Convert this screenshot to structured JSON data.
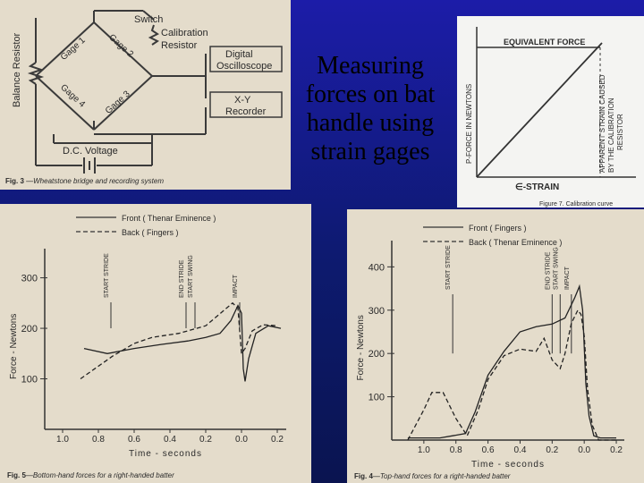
{
  "slide_title": "Measuring forces on bat handle using strain gages",
  "wheatstone": {
    "gages": [
      "Gage 1",
      "Gage 2",
      "Gage 4",
      "Gage 3"
    ],
    "switch": "Switch",
    "cal_resistor": [
      "Calibration",
      "Resistor"
    ],
    "balance": "Balance Resistor",
    "oscilloscope": [
      "Digital",
      "Oscilloscope"
    ],
    "xy": [
      "X-Y",
      "Recorder"
    ],
    "dc": "D.C. Voltage",
    "caption_num": "Fig. 3",
    "caption": "—Wheatstone bridge and recording system"
  },
  "calibration": {
    "label": "EQUIVALENT FORCE",
    "ylabel": "P-FORCE IN NEWTONS",
    "side1": "APPARENT STRAIN CAUSED",
    "side2": "BY THE CALIBRATION",
    "side3": "RESISTOR",
    "xlabel": "∈-STRAIN",
    "caption": "Figure 7. Calibration curve"
  },
  "chart_data": [
    {
      "type": "line",
      "xlabel": "Time - seconds",
      "ylabel": "Force - Newtons",
      "x_ticks": [
        "1.0",
        "0.8",
        "0.6",
        "0.4",
        "0.2",
        "0.0",
        "0.2"
      ],
      "y_ticks": [
        "100",
        "200",
        "300"
      ],
      "legend": [
        "Front ( Thenar Eminence )",
        "Back ( Fingers )"
      ],
      "markers": [
        "START STRIDE",
        "END STRIDE",
        "START SWING",
        "IMPACT"
      ],
      "caption_num": "Fig. 5",
      "caption": "—Bottom-hand forces for a right-handed batter",
      "series": [
        {
          "name": "Front ( Thenar Eminence )",
          "style": "solid",
          "points": [
            [
              -0.88,
              160
            ],
            [
              -0.75,
              150
            ],
            [
              -0.6,
              160
            ],
            [
              -0.45,
              168
            ],
            [
              -0.3,
              175
            ],
            [
              -0.2,
              182
            ],
            [
              -0.12,
              190
            ],
            [
              -0.06,
              215
            ],
            [
              -0.02,
              245
            ],
            [
              0.0,
              230
            ],
            [
              0.01,
              120
            ],
            [
              0.02,
              95
            ],
            [
              0.04,
              140
            ],
            [
              0.08,
              190
            ],
            [
              0.15,
              205
            ],
            [
              0.22,
              200
            ]
          ]
        },
        {
          "name": "Back ( Fingers )",
          "style": "dashed",
          "points": [
            [
              -0.9,
              100
            ],
            [
              -0.82,
              120
            ],
            [
              -0.72,
              145
            ],
            [
              -0.6,
              170
            ],
            [
              -0.5,
              182
            ],
            [
              -0.35,
              190
            ],
            [
              -0.2,
              205
            ],
            [
              -0.1,
              235
            ],
            [
              -0.05,
              250
            ],
            [
              -0.02,
              240
            ],
            [
              0.0,
              150
            ],
            [
              0.02,
              160
            ],
            [
              0.06,
              195
            ],
            [
              0.12,
              207
            ],
            [
              0.2,
              205
            ]
          ]
        }
      ]
    },
    {
      "type": "line",
      "xlabel": "Time - seconds",
      "ylabel": "Force - Newtons",
      "x_ticks": [
        "1.0",
        "0.8",
        "0.6",
        "0.4",
        "0.2",
        "0.0",
        "0.2"
      ],
      "y_ticks": [
        "100",
        "200",
        "300",
        "400"
      ],
      "legend": [
        "Front ( Fingers )",
        "Back ( Thenar Eminence )"
      ],
      "markers": [
        "START STRIDE",
        "END STRIDE",
        "START SWING",
        "IMPACT"
      ],
      "caption_num": "Fig. 4",
      "caption": "—Top-hand forces for a right-handed batter",
      "series": [
        {
          "name": "Front ( Fingers )",
          "style": "solid",
          "points": [
            [
              -1.1,
              5
            ],
            [
              -0.9,
              5
            ],
            [
              -0.82,
              10
            ],
            [
              -0.74,
              15
            ],
            [
              -0.68,
              65
            ],
            [
              -0.6,
              150
            ],
            [
              -0.5,
              205
            ],
            [
              -0.4,
              250
            ],
            [
              -0.3,
              262
            ],
            [
              -0.2,
              268
            ],
            [
              -0.12,
              282
            ],
            [
              -0.06,
              328
            ],
            [
              -0.03,
              355
            ],
            [
              -0.01,
              300
            ],
            [
              0.01,
              130
            ],
            [
              0.03,
              55
            ],
            [
              0.06,
              10
            ],
            [
              0.1,
              5
            ],
            [
              0.2,
              5
            ]
          ]
        },
        {
          "name": "Back ( Thenar Eminence )",
          "style": "dashed",
          "points": [
            [
              -1.1,
              0
            ],
            [
              -1.0,
              70
            ],
            [
              -0.95,
              110
            ],
            [
              -0.88,
              110
            ],
            [
              -0.8,
              50
            ],
            [
              -0.73,
              10
            ],
            [
              -0.66,
              70
            ],
            [
              -0.6,
              140
            ],
            [
              -0.5,
              195
            ],
            [
              -0.4,
              210
            ],
            [
              -0.3,
              205
            ],
            [
              -0.25,
              235
            ],
            [
              -0.2,
              185
            ],
            [
              -0.15,
              165
            ],
            [
              -0.12,
              200
            ],
            [
              -0.08,
              270
            ],
            [
              -0.04,
              300
            ],
            [
              -0.02,
              290
            ],
            [
              0.0,
              240
            ],
            [
              0.02,
              120
            ],
            [
              0.05,
              35
            ],
            [
              0.09,
              0
            ],
            [
              0.2,
              0
            ]
          ]
        }
      ]
    }
  ]
}
